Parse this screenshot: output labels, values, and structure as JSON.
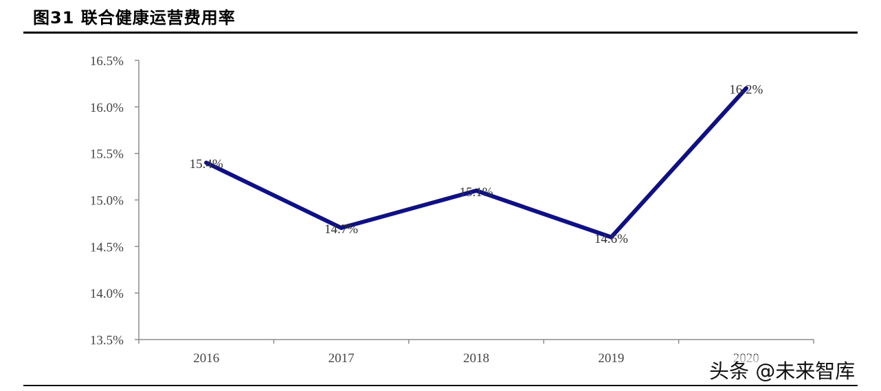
{
  "figure": {
    "title": "图31 联合健康运营费用率"
  },
  "watermark": {
    "text": "头条 @未来智库"
  },
  "chart_data": {
    "type": "line",
    "title": "",
    "xlabel": "",
    "ylabel": "",
    "categories": [
      "2016",
      "2017",
      "2018",
      "2019",
      "2020"
    ],
    "series": [
      {
        "values": [
          15.4,
          14.7,
          15.1,
          14.6,
          16.2
        ],
        "labels": [
          "15.4%",
          "14.7%",
          "15.1%",
          "14.6%",
          "16.2%"
        ],
        "color": "#0d0f8c"
      }
    ],
    "ylim": [
      13.5,
      16.5
    ],
    "yticks": [
      13.5,
      14.0,
      14.5,
      15.0,
      15.5,
      16.0,
      16.5
    ],
    "ytick_labels": [
      "13.5%",
      "14.0%",
      "14.5%",
      "15.0%",
      "15.5%",
      "16.0%",
      "16.5%"
    ],
    "grid": false,
    "legend": "none"
  }
}
